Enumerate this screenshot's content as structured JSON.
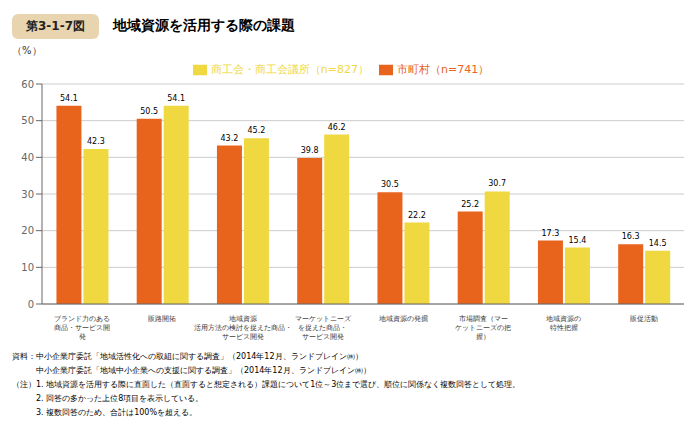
{
  "chart_data": {
    "type": "bar",
    "title": "地域資源を活用する際の課題",
    "categories": [
      "ブランド力のある\n商品・サービス開\n発",
      "販路開拓",
      "地域資源\n活用方法の検討を捉えた商品・\nサービス開発",
      "マーケットニーズ\nを捉えた商品・\nサービス開発",
      "地域資源の発掘",
      "市場調査（マー\nケットニーズの把\n握）",
      "地域資源の\n特性把握",
      "販促活動"
    ],
    "series": [
      {
        "name": "市町村（n=741）",
        "color": "#E8641C",
        "values": [
          54.1,
          50.5,
          43.2,
          39.8,
          30.5,
          25.2,
          17.3,
          16.3
        ]
      },
      {
        "name": "商工会・商工会議所（n=827）",
        "color": "#F0D840",
        "values": [
          42.3,
          54.1,
          45.2,
          46.2,
          22.2,
          30.7,
          15.4,
          14.5
        ]
      }
    ],
    "ylabel": "（%）",
    "ylim": [
      0,
      60
    ],
    "yticks": [
      0,
      10,
      20,
      30,
      40,
      50,
      60
    ],
    "grid": true,
    "data_labels": true,
    "legend": "top",
    "annotations": [
      "第3-1-7図",
      "資料：中小企業庁委託「地域活性化への取組に関する調査」（2014年12月、ランドブレイン㈱）",
      "　　　中小企業庁委託「地域中小企業への支援に関する調査」（2014年12月、ランドブレイン㈱）",
      "（注）1. 地域資源を活用する際に直面した（直面すると想定される）課題について1位～3位まで選び、順位に関係なく複数回答として処理。",
      "　　　2. 回答の多かった上位8項目を表示している。",
      "　　　3. 複数回答のため、合計は100%を超える。"
    ]
  }
}
